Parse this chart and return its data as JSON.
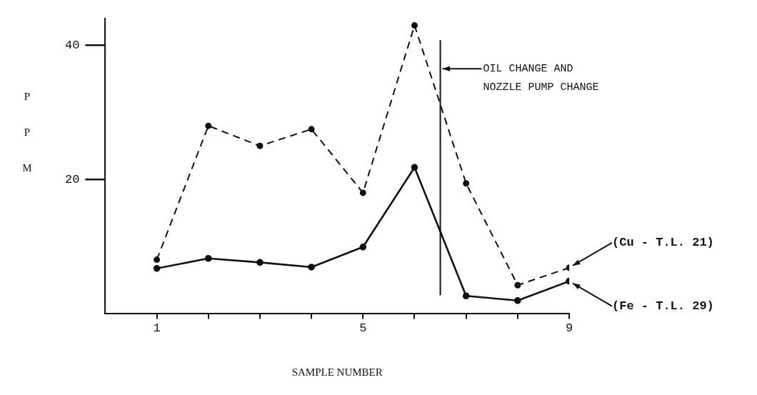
{
  "chart_data": {
    "type": "line",
    "xlabel": "SAMPLE NUMBER",
    "ylabel": "PPM",
    "x": [
      1,
      2,
      3,
      4,
      5,
      6,
      7,
      8,
      9
    ],
    "series": [
      {
        "name": "(Cu - T.L. 21)",
        "color": "#111111",
        "line_style": "dashed",
        "values": [
          8,
          28,
          25,
          27.5,
          18,
          43,
          19.4,
          4.2,
          6.8
        ]
      },
      {
        "name": "(Fe - T.L. 29)",
        "color": "#111111",
        "line_style": "solid",
        "values": [
          6.7,
          8.2,
          7.6,
          6.9,
          9.9,
          21.8,
          2.6,
          1.9,
          4.8
        ]
      }
    ],
    "xlim": [
      0,
      9
    ],
    "xticks": [
      1,
      {
        "value": 2,
        "label": null
      },
      {
        "value": 3,
        "label": null
      },
      {
        "value": 4,
        "label": null
      },
      5,
      {
        "value": 6,
        "label": null
      },
      {
        "value": 7,
        "label": null
      },
      {
        "value": 8,
        "label": null
      },
      9
    ],
    "ylim": [
      0,
      44
    ],
    "yticks": [
      20,
      40
    ],
    "ref_lines": [
      {
        "axis": "x",
        "value": 6.5,
        "label": "OIL CHANGE AND\nNOZZLE PUMP CHANGE"
      }
    ],
    "marker": "circle",
    "grid": false,
    "legend": false
  }
}
